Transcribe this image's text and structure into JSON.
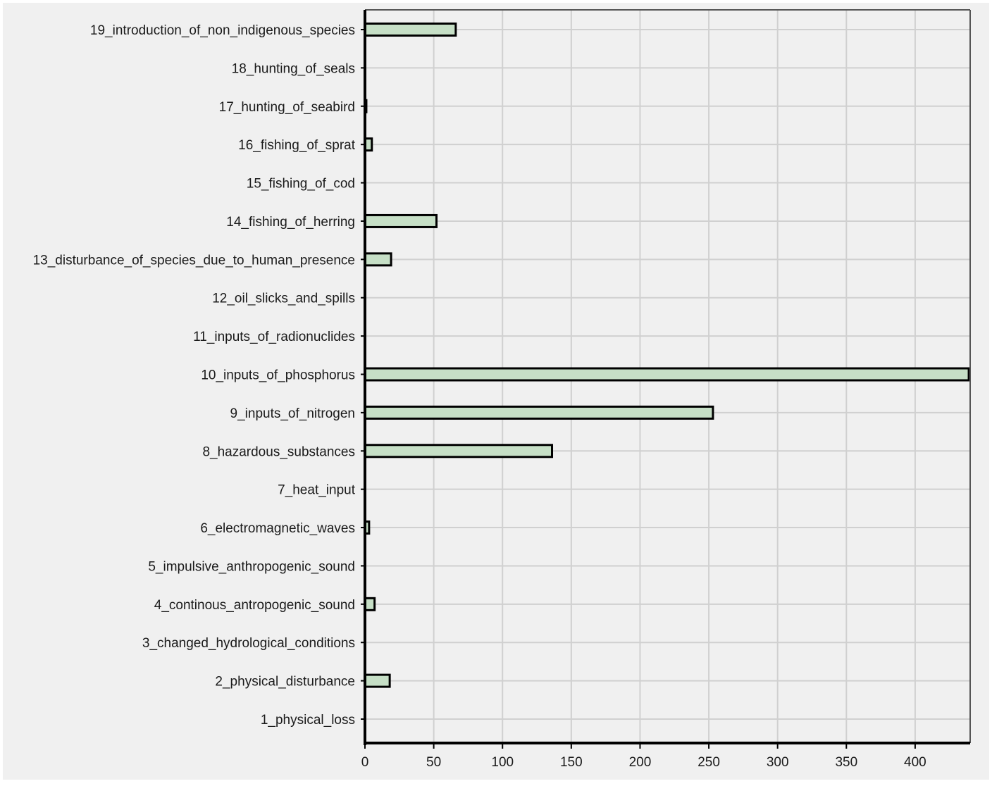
{
  "chart_data": {
    "type": "bar",
    "orientation": "horizontal",
    "title": "",
    "xlabel": "",
    "ylabel": "",
    "categories": [
      "1_physical_loss",
      "2_physical_disturbance",
      "3_changed_hydrological_conditions",
      "4_continous_antropogenic_sound",
      "5_impulsive_anthropogenic_sound",
      "6_electromagnetic_waves",
      "7_heat_input",
      "8_hazardous_substances",
      "9_inputs_of_nitrogen",
      "10_inputs_of_phosphorus",
      "11_inputs_of_radionuclides",
      "12_oil_slicks_and_spills",
      "13_disturbance_of_species_due_to_human_presence",
      "14_fishing_of_herring",
      "15_fishing_of_cod",
      "16_fishing_of_sprat",
      "17_hunting_of_seabird",
      "18_hunting_of_seals",
      "19_introduction_of_non_indigenous_species"
    ],
    "values": [
      0,
      18,
      0,
      7,
      0,
      3,
      0,
      136,
      253,
      439,
      0,
      0,
      19,
      52,
      0,
      5,
      1,
      0,
      66
    ],
    "xlim": [
      0,
      440
    ],
    "xticks": [
      0,
      50,
      100,
      150,
      200,
      250,
      300,
      350,
      400
    ],
    "grid": true,
    "legend": "none",
    "colors": {
      "bar_fill": "#c6dfc6",
      "bar_stroke": "#000000",
      "plot_background": "#f0f0f0",
      "page_background": "#ffffff",
      "gridline": "#d0d0d0",
      "axis": "#000000"
    }
  }
}
